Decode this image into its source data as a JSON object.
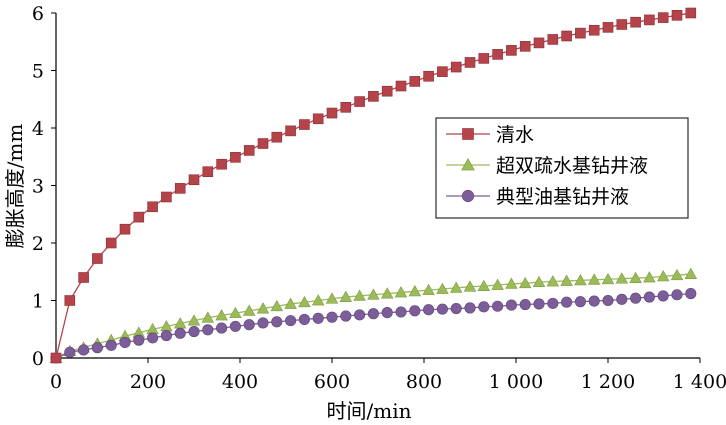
{
  "chart_data": {
    "type": "line",
    "xlabel": "时间/min",
    "ylabel": "膨胀高度/mm",
    "xlim": [
      0,
      1400
    ],
    "ylim": [
      0,
      6
    ],
    "x_ticks": [
      "0",
      "200",
      "400",
      "600",
      "800",
      "1 000",
      "1 200",
      "1 400"
    ],
    "y_ticks": [
      "0",
      "1",
      "2",
      "3",
      "4",
      "5",
      "6"
    ],
    "grid": false,
    "legend": "right",
    "x": [
      0,
      30,
      60,
      90,
      120,
      150,
      180,
      210,
      240,
      270,
      300,
      330,
      360,
      390,
      420,
      450,
      480,
      510,
      540,
      570,
      600,
      630,
      660,
      690,
      720,
      750,
      780,
      810,
      840,
      870,
      900,
      930,
      960,
      990,
      1020,
      1050,
      1080,
      1110,
      1140,
      1170,
      1200,
      1230,
      1260,
      1290,
      1320,
      1350,
      1380
    ],
    "series": [
      {
        "name": "清水",
        "color": "#b5434a",
        "marker": "square",
        "values": [
          0.0,
          1.0,
          1.4,
          1.73,
          2.0,
          2.24,
          2.45,
          2.63,
          2.8,
          2.95,
          3.1,
          3.24,
          3.37,
          3.49,
          3.61,
          3.73,
          3.84,
          3.95,
          4.06,
          4.16,
          4.26,
          4.36,
          4.46,
          4.55,
          4.64,
          4.73,
          4.81,
          4.9,
          4.98,
          5.06,
          5.14,
          5.21,
          5.28,
          5.35,
          5.42,
          5.48,
          5.54,
          5.6,
          5.65,
          5.7,
          5.75,
          5.8,
          5.84,
          5.88,
          5.92,
          5.96,
          6.0
        ]
      },
      {
        "name": "超双疏水基钻井液",
        "color": "#9bbb59",
        "marker": "triangle",
        "values": [
          0.0,
          0.12,
          0.18,
          0.25,
          0.31,
          0.38,
          0.44,
          0.5,
          0.55,
          0.6,
          0.65,
          0.7,
          0.74,
          0.78,
          0.82,
          0.86,
          0.9,
          0.94,
          0.97,
          1.0,
          1.03,
          1.06,
          1.08,
          1.1,
          1.12,
          1.14,
          1.16,
          1.18,
          1.2,
          1.22,
          1.24,
          1.25,
          1.27,
          1.29,
          1.3,
          1.32,
          1.33,
          1.34,
          1.35,
          1.36,
          1.37,
          1.38,
          1.39,
          1.4,
          1.42,
          1.44,
          1.46
        ]
      },
      {
        "name": "典型油基钻井液",
        "color": "#7d5d99",
        "marker": "circle",
        "values": [
          0.0,
          0.1,
          0.14,
          0.18,
          0.22,
          0.27,
          0.31,
          0.35,
          0.39,
          0.43,
          0.46,
          0.49,
          0.52,
          0.55,
          0.58,
          0.61,
          0.63,
          0.65,
          0.67,
          0.69,
          0.71,
          0.73,
          0.75,
          0.77,
          0.79,
          0.8,
          0.82,
          0.84,
          0.85,
          0.86,
          0.87,
          0.89,
          0.9,
          0.92,
          0.93,
          0.94,
          0.95,
          0.97,
          0.98,
          0.99,
          1.0,
          1.02,
          1.04,
          1.06,
          1.08,
          1.1,
          1.12
        ]
      }
    ]
  }
}
